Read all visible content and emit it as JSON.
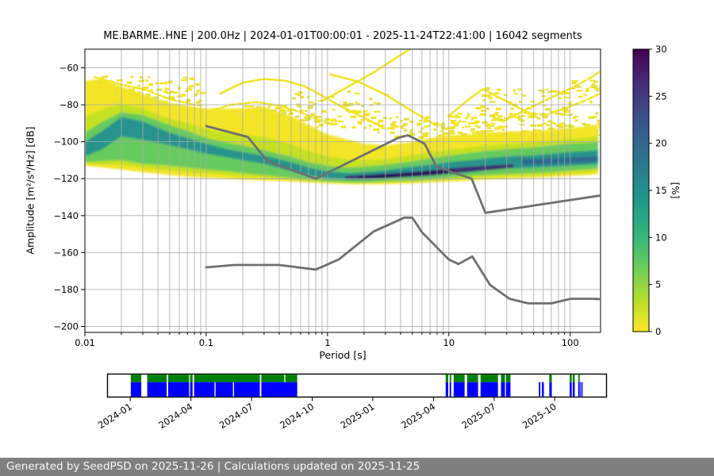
{
  "title": "ME.BARME..HNE | 200.0Hz | 2024-01-01T00:00:01 - 2025-11-24T22:41:00 | 16042 segments",
  "axes": {
    "x_label": "Period [s]",
    "y_label": "Amplitude [m²/s⁴/Hz] [dB]",
    "x_ticks": [
      {
        "value": 0.01,
        "label": "0.01"
      },
      {
        "value": 0.1,
        "label": "0.1"
      },
      {
        "value": 1,
        "label": "1"
      },
      {
        "value": 10,
        "label": "10"
      },
      {
        "value": 100,
        "label": "100"
      }
    ],
    "y_ticks": [
      {
        "value": -60,
        "label": "−60"
      },
      {
        "value": -80,
        "label": "−80"
      },
      {
        "value": -100,
        "label": "−100"
      },
      {
        "value": -120,
        "label": "−120"
      },
      {
        "value": -140,
        "label": "−140"
      },
      {
        "value": -160,
        "label": "−160"
      },
      {
        "value": -180,
        "label": "−180"
      },
      {
        "value": -200,
        "label": "−200"
      }
    ]
  },
  "colorbar": {
    "label": "[%]",
    "ticks": [
      {
        "value": 0,
        "label": "0"
      },
      {
        "value": 5,
        "label": "5"
      },
      {
        "value": 10,
        "label": "10"
      },
      {
        "value": 15,
        "label": "15"
      },
      {
        "value": 20,
        "label": "20"
      },
      {
        "value": 25,
        "label": "25"
      },
      {
        "value": 30,
        "label": "30"
      }
    ],
    "vmin": 0,
    "vmax": 30,
    "gradient_top_to_bottom": [
      "#440154",
      "#482878",
      "#3e4a89",
      "#31688e",
      "#26828e",
      "#1f9e89",
      "#35b779",
      "#6ece58",
      "#b5de2b",
      "#fde725"
    ]
  },
  "footer": {
    "text": "Generated by SeedPSD on 2025-11-26 | Calculations updated on 2025-11-25"
  },
  "chart_data": {
    "type": "heatmap",
    "title": "ME.BARME..HNE | 200.0Hz | 2024-01-01T00:00:01 - 2025-11-24T22:41:00 | 16042 segments",
    "xlabel": "Period [s]",
    "ylabel": "Amplitude [m²/s⁴/Hz] [dB]",
    "x_scale": "log",
    "xlim": [
      0.01,
      178
    ],
    "ylim": [
      -203.2,
      -49.9
    ],
    "grid": true,
    "colors": {
      "yellow": "#f3e525",
      "lime": "#c6e121",
      "green": "#66cb5d",
      "teal": "#26948c",
      "core": "#3c2d74",
      "darkest": "#250f55",
      "ridge_blue": "#2d6a8e",
      "gridline": "#a8a8a8",
      "noise_model": "#6f6f6f"
    },
    "envelope": {
      "periods": [
        0.01,
        0.014,
        0.02,
        0.03,
        0.05,
        0.07,
        0.1,
        0.15,
        0.2,
        0.3,
        0.5,
        0.7,
        1.0,
        1.5,
        2.0,
        3.0,
        5.0,
        7.0,
        10.0,
        15.0,
        20.0,
        30.0,
        50.0,
        70.0,
        100.0,
        140.0,
        170.0
      ],
      "y_top": [
        -67,
        -66,
        -70,
        -74,
        -79,
        -80.5,
        -82,
        -82,
        -82,
        -81,
        -86,
        -91,
        -96,
        -99,
        -101,
        -102,
        -100,
        -98,
        -96.5,
        -96,
        -95,
        -94.5,
        -94,
        -93.5,
        -92.5,
        -91.5,
        -90.5
      ],
      "g_top": [
        -95,
        -89,
        -84,
        -85.5,
        -91,
        -94,
        -98,
        -100.5,
        -102,
        -104.5,
        -108,
        -111,
        -113,
        -114,
        -113.5,
        -112.5,
        -110.5,
        -109,
        -107.5,
        -106,
        -105,
        -104,
        -103,
        -102,
        -101,
        -100.5,
        -100
      ],
      "t_top": [
        -100,
        -94,
        -86.5,
        -89,
        -95,
        -98,
        -101,
        -104,
        -105.5,
        -107.5,
        -111,
        -114,
        -116,
        -117,
        -116.5,
        -115.5,
        -113.5,
        -112.5,
        -111,
        -110,
        -109,
        -108,
        -107.5,
        -106.5,
        -105.5,
        -105,
        -104.5
      ],
      "t_bot": [
        -108,
        -104,
        -97,
        -99,
        -102,
        -104,
        -106.5,
        -108.5,
        -110,
        -112,
        -116,
        -118,
        -120,
        -120.5,
        -120.5,
        -120,
        -119,
        -118.5,
        -117.5,
        -116.5,
        -115.5,
        -114.5,
        -114,
        -113.5,
        -113,
        -112.5,
        -112
      ],
      "g_bot": [
        -111,
        -110.5,
        -110,
        -112,
        -113,
        -114,
        -115,
        -116,
        -117,
        -118,
        -119.5,
        -120.5,
        -121.5,
        -122,
        -122,
        -121.5,
        -121,
        -120.5,
        -119.5,
        -118.5,
        -118,
        -117.5,
        -117,
        -116.5,
        -115.5,
        -115,
        -114.5
      ],
      "y_bot": [
        -113,
        -114,
        -115,
        -116.5,
        -118,
        -119,
        -119.5,
        -120,
        -120.5,
        -121,
        -121.5,
        -122,
        -122.5,
        -123,
        -123,
        -123,
        -122.5,
        -122,
        -121.5,
        -121,
        -120.5,
        -120,
        -119.5,
        -119,
        -118.5,
        -118,
        -117.5
      ]
    },
    "core_band": [
      [
        1.4,
        -118.5,
        -120.3
      ],
      [
        2,
        -118,
        -120.3
      ],
      [
        3,
        -117.3,
        -119.8
      ],
      [
        5,
        -116.3,
        -118.8
      ],
      [
        7,
        -115.5,
        -118.2
      ],
      [
        10,
        -114.5,
        -117.2
      ],
      [
        15,
        -113.5,
        -116.2
      ],
      [
        20,
        -113,
        -115.5
      ],
      [
        26,
        -112.5,
        -114.8
      ],
      [
        34,
        -112.2,
        -114
      ]
    ],
    "darkest_band": [
      [
        1.8,
        -118.6,
        -119.9
      ],
      [
        3,
        -117.6,
        -119.5
      ],
      [
        5,
        -116.6,
        -118.5
      ],
      [
        8,
        -115.6,
        -117.8
      ],
      [
        11,
        -114.8,
        -116.8
      ]
    ],
    "ridge_blue_band": [
      [
        40,
        -109.5,
        -112.5
      ],
      [
        70,
        -109,
        -112
      ],
      [
        100,
        -108.5,
        -111.5
      ],
      [
        140,
        -108,
        -111
      ],
      [
        170,
        -108,
        -110.5
      ]
    ],
    "noise_models": {
      "nhnm": [
        [
          0.1,
          -91.5
        ],
        [
          0.22,
          -97.4
        ],
        [
          0.32,
          -110.5
        ],
        [
          0.8,
          -120
        ],
        [
          3.8,
          -98
        ],
        [
          4.6,
          -96.5
        ],
        [
          6.3,
          -101
        ],
        [
          7.9,
          -113.5
        ],
        [
          15.4,
          -120
        ],
        [
          20,
          -138.5
        ],
        [
          178,
          -129.1
        ]
      ],
      "nlnm": [
        [
          0.1,
          -168
        ],
        [
          0.17,
          -166.7
        ],
        [
          0.4,
          -166.7
        ],
        [
          0.8,
          -169.2
        ],
        [
          1.24,
          -163.7
        ],
        [
          2.4,
          -148.6
        ],
        [
          4.3,
          -141.1
        ],
        [
          5,
          -141.1
        ],
        [
          6,
          -149
        ],
        [
          10,
          -163.8
        ],
        [
          12,
          -166.2
        ],
        [
          15.6,
          -162.1
        ],
        [
          21.9,
          -177.5
        ],
        [
          31.6,
          -185
        ],
        [
          45,
          -187.5
        ],
        [
          70,
          -187.5
        ],
        [
          101,
          -185
        ],
        [
          154,
          -185
        ],
        [
          178,
          -185.2
        ]
      ]
    },
    "transient_curves": [
      {
        "dash": true,
        "points": [
          [
            0.012,
            -65
          ],
          [
            0.02,
            -69
          ],
          [
            0.032,
            -72
          ],
          [
            0.05,
            -77
          ],
          [
            0.08,
            -80
          ]
        ]
      },
      {
        "dash": false,
        "points": [
          [
            0.13,
            -74
          ],
          [
            0.2,
            -68
          ],
          [
            0.3,
            -66
          ],
          [
            0.45,
            -67
          ],
          [
            0.65,
            -70
          ],
          [
            0.9,
            -75
          ],
          [
            1.3,
            -81
          ],
          [
            2,
            -87
          ],
          [
            2.8,
            -92
          ]
        ]
      },
      {
        "dash": true,
        "points": [
          [
            0.1,
            -84
          ],
          [
            0.16,
            -80
          ],
          [
            0.26,
            -78.5
          ],
          [
            0.4,
            -80.5
          ],
          [
            0.6,
            -84
          ],
          [
            0.85,
            -88.5
          ]
        ]
      },
      {
        "dash": false,
        "points": [
          [
            0.9,
            -78
          ],
          [
            1.5,
            -70
          ],
          [
            2.4,
            -62.5
          ],
          [
            3.8,
            -54
          ],
          [
            5.2,
            -48.5
          ]
        ]
      },
      {
        "dash": false,
        "points": [
          [
            1.05,
            -63.5
          ],
          [
            1.8,
            -67.5
          ],
          [
            3,
            -74.5
          ],
          [
            5,
            -83.5
          ],
          [
            8,
            -91.5
          ]
        ]
      },
      {
        "dash": false,
        "points": [
          [
            10,
            -86
          ],
          [
            14,
            -78
          ],
          [
            19,
            -71.5
          ],
          [
            26,
            -76
          ],
          [
            34,
            -80
          ],
          [
            44,
            -84
          ],
          [
            56,
            -87.5
          ]
        ]
      },
      {
        "dash": true,
        "points": [
          [
            28,
            -89
          ],
          [
            45,
            -82
          ],
          [
            70,
            -76
          ],
          [
            110,
            -70
          ],
          [
            155,
            -64.5
          ],
          [
            175,
            -62
          ]
        ]
      },
      {
        "dash": true,
        "points": [
          [
            60,
            -86
          ],
          [
            90,
            -82
          ],
          [
            130,
            -78
          ],
          [
            175,
            -74
          ]
        ]
      }
    ],
    "speckle_regions": [
      {
        "p0": 0.011,
        "p1": 0.09,
        "db0": -64,
        "db1": -80,
        "n": 90
      },
      {
        "p0": 0.12,
        "p1": 2.5,
        "db0": -80,
        "db1": -93,
        "n": 120
      },
      {
        "p0": 2.5,
        "p1": 9,
        "db0": -86,
        "db1": -97,
        "n": 60
      },
      {
        "p0": 9,
        "p1": 178,
        "db0": -84,
        "db1": -96,
        "n": 150
      },
      {
        "p0": 16,
        "p1": 178,
        "db0": -70,
        "db1": -84,
        "n": 60
      },
      {
        "p0": 0.5,
        "p1": 3,
        "db0": -72,
        "db1": -80,
        "n": 25
      },
      {
        "p0": 100,
        "p1": 178,
        "db0": -66,
        "db1": -72,
        "n": 18
      }
    ],
    "timeline": {
      "colors": {
        "green": "#008000",
        "blue": "#0000ff"
      },
      "ticks": [
        {
          "label": "2024-01",
          "f": 0.0449
        },
        {
          "label": "2024-04",
          "f": 0.1667
        },
        {
          "label": "2024-07",
          "f": 0.2884
        },
        {
          "label": "2024-10",
          "f": 0.4102
        },
        {
          "label": "2025-01",
          "f": 0.5317
        },
        {
          "label": "2025-04",
          "f": 0.6536
        },
        {
          "label": "2025-07",
          "f": 0.7752
        },
        {
          "label": "2025-10",
          "f": 0.8968
        }
      ],
      "segments": [
        {
          "f0": 0.046,
          "f1": 0.067,
          "type": "both"
        },
        {
          "f0": 0.079,
          "f1": 0.118,
          "type": "both"
        },
        {
          "f0": 0.121,
          "f1": 0.163,
          "type": "both"
        },
        {
          "f0": 0.165,
          "f1": 0.17,
          "type": "both"
        },
        {
          "f0": 0.173,
          "f1": 0.305,
          "type": "both"
        },
        {
          "f0": 0.308,
          "f1": 0.38,
          "type": "both"
        },
        {
          "f0": 0.678,
          "f1": 0.683,
          "type": "both"
        },
        {
          "f0": 0.686,
          "f1": 0.689,
          "type": "both"
        },
        {
          "f0": 0.694,
          "f1": 0.716,
          "type": "both"
        },
        {
          "f0": 0.721,
          "f1": 0.743,
          "type": "both"
        },
        {
          "f0": 0.748,
          "f1": 0.783,
          "type": "both"
        },
        {
          "f0": 0.789,
          "f1": 0.797,
          "type": "both"
        },
        {
          "f0": 0.799,
          "f1": 0.808,
          "type": "both"
        },
        {
          "f0": 0.865,
          "f1": 0.868,
          "type": "blue"
        },
        {
          "f0": 0.871,
          "f1": 0.875,
          "type": "blue"
        },
        {
          "f0": 0.886,
          "f1": 0.891,
          "type": "both"
        },
        {
          "f0": 0.927,
          "f1": 0.931,
          "type": "both"
        },
        {
          "f0": 0.933,
          "f1": 0.937,
          "type": "both"
        },
        {
          "f0": 0.944,
          "f1": 0.947,
          "type": "both"
        },
        {
          "f0": 0.948,
          "f1": 0.949,
          "type": "blue"
        },
        {
          "f0": 0.951,
          "f1": 0.953,
          "type": "blue"
        }
      ],
      "blue_cuts": [
        0.214,
        0.251
      ],
      "green_cuts": [
        0.354
      ]
    }
  }
}
